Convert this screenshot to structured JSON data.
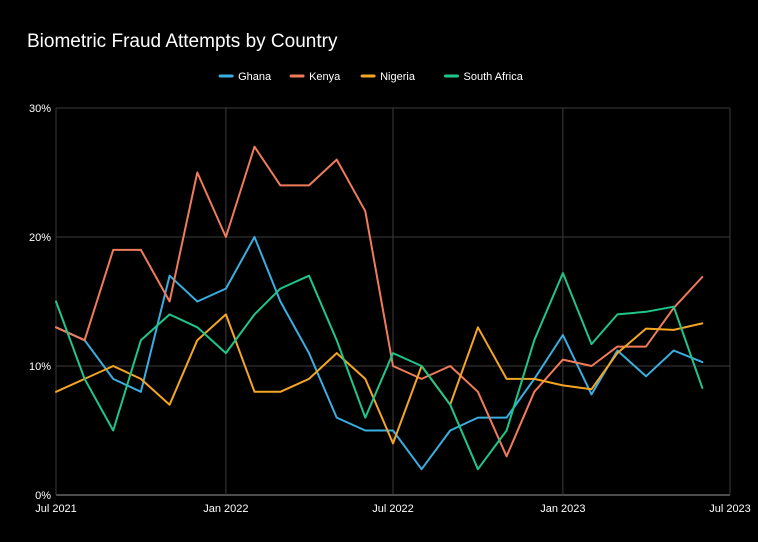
{
  "chart_data": {
    "type": "line",
    "title": "Biometric Fraud Attempts by Country",
    "xlabel": "",
    "ylabel": "",
    "x_axis": {
      "type": "date",
      "range": [
        "2021-07-01",
        "2023-07-01"
      ],
      "tick_labels": [
        "Jul 2021",
        "Jan 2022",
        "Jul 2022",
        "Jan 2023",
        "Jul 2023"
      ]
    },
    "y_axis": {
      "range": [
        0,
        30
      ],
      "unit": "%",
      "tick_labels": [
        "0%",
        "10%",
        "20%",
        "30%"
      ]
    },
    "grid": true,
    "legend_position": "top-center",
    "series": [
      {
        "name": "Ghana",
        "color": "#3aaee0",
        "points": [
          [
            "2021-07-01",
            13
          ],
          [
            "2021-08-01",
            12
          ],
          [
            "2021-09-01",
            9
          ],
          [
            "2021-10-01",
            8
          ],
          [
            "2021-11-01",
            17
          ],
          [
            "2021-12-01",
            15
          ],
          [
            "2022-01-01",
            16
          ],
          [
            "2022-02-01",
            20
          ],
          [
            "2022-03-01",
            15
          ],
          [
            "2022-04-01",
            11
          ],
          [
            "2022-05-01",
            6
          ],
          [
            "2022-06-01",
            5
          ],
          [
            "2022-07-01",
            5
          ],
          [
            "2022-08-01",
            2
          ],
          [
            "2022-09-01",
            5
          ],
          [
            "2022-10-01",
            6
          ],
          [
            "2022-11-01",
            6
          ],
          [
            "2022-12-01",
            9
          ],
          [
            "2023-01-01",
            12.4
          ],
          [
            "2023-02-01",
            7.8
          ],
          [
            "2023-03-01",
            11.2
          ],
          [
            "2023-04-01",
            9.2
          ],
          [
            "2023-05-01",
            11.2
          ],
          [
            "2023-06-01",
            10.3
          ]
        ]
      },
      {
        "name": "Kenya",
        "color": "#f07b5b",
        "points": [
          [
            "2021-07-01",
            13
          ],
          [
            "2021-08-01",
            12
          ],
          [
            "2021-09-01",
            19
          ],
          [
            "2021-10-01",
            19
          ],
          [
            "2021-11-01",
            15
          ],
          [
            "2021-12-01",
            25
          ],
          [
            "2022-01-01",
            20
          ],
          [
            "2022-02-01",
            27
          ],
          [
            "2022-03-01",
            24
          ],
          [
            "2022-04-01",
            24
          ],
          [
            "2022-05-01",
            26
          ],
          [
            "2022-06-01",
            22
          ],
          [
            "2022-07-01",
            10
          ],
          [
            "2022-08-01",
            9
          ],
          [
            "2022-09-01",
            10
          ],
          [
            "2022-10-01",
            8
          ],
          [
            "2022-11-01",
            3
          ],
          [
            "2022-12-01",
            8
          ],
          [
            "2023-01-01",
            10.5
          ],
          [
            "2023-02-01",
            10
          ],
          [
            "2023-03-01",
            11.5
          ],
          [
            "2023-04-01",
            11.5
          ],
          [
            "2023-05-01",
            14.5
          ],
          [
            "2023-06-01",
            16.9
          ]
        ]
      },
      {
        "name": "Nigeria",
        "color": "#f4a523",
        "points": [
          [
            "2021-07-01",
            8
          ],
          [
            "2021-08-01",
            9
          ],
          [
            "2021-09-01",
            10
          ],
          [
            "2021-10-01",
            9
          ],
          [
            "2021-11-01",
            7
          ],
          [
            "2021-12-01",
            12
          ],
          [
            "2022-01-01",
            14
          ],
          [
            "2022-02-01",
            8
          ],
          [
            "2022-03-01",
            8
          ],
          [
            "2022-04-01",
            9
          ],
          [
            "2022-05-01",
            11
          ],
          [
            "2022-06-01",
            9
          ],
          [
            "2022-07-01",
            4
          ],
          [
            "2022-08-01",
            10
          ],
          [
            "2022-09-01",
            7
          ],
          [
            "2022-10-01",
            13
          ],
          [
            "2022-11-01",
            9
          ],
          [
            "2022-12-01",
            9
          ],
          [
            "2023-01-01",
            8.5
          ],
          [
            "2023-02-01",
            8.2
          ],
          [
            "2023-03-01",
            11
          ],
          [
            "2023-04-01",
            12.9
          ],
          [
            "2023-05-01",
            12.8
          ],
          [
            "2023-06-01",
            13.3
          ]
        ]
      },
      {
        "name": "South Africa",
        "color": "#1fc68a",
        "points": [
          [
            "2021-07-01",
            15
          ],
          [
            "2021-08-01",
            9
          ],
          [
            "2021-09-01",
            5
          ],
          [
            "2021-10-01",
            12
          ],
          [
            "2021-11-01",
            14
          ],
          [
            "2021-12-01",
            13
          ],
          [
            "2022-01-01",
            11
          ],
          [
            "2022-02-01",
            14
          ],
          [
            "2022-03-01",
            16
          ],
          [
            "2022-04-01",
            17
          ],
          [
            "2022-05-01",
            12
          ],
          [
            "2022-06-01",
            6
          ],
          [
            "2022-07-01",
            11
          ],
          [
            "2022-08-01",
            10
          ],
          [
            "2022-09-01",
            7
          ],
          [
            "2022-10-01",
            2
          ],
          [
            "2022-11-01",
            5
          ],
          [
            "2022-12-01",
            12
          ],
          [
            "2023-01-01",
            17.2
          ],
          [
            "2023-02-01",
            11.7
          ],
          [
            "2023-03-01",
            14
          ],
          [
            "2023-04-01",
            14.2
          ],
          [
            "2023-05-01",
            14.6
          ],
          [
            "2023-06-01",
            8.3
          ]
        ]
      }
    ]
  }
}
